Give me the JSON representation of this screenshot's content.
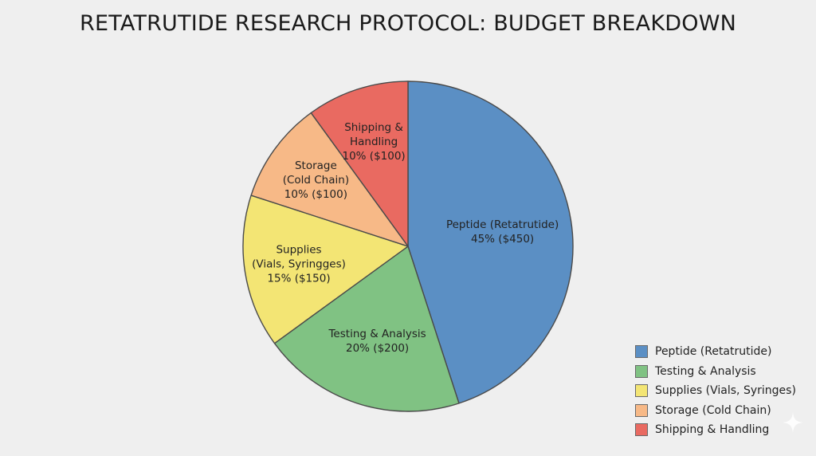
{
  "chart_data": {
    "type": "pie",
    "title": "RETATRUTIDE RESEARCH PROTOCOL: BUDGET BREAKDOWN",
    "unit": "USD",
    "slices": [
      {
        "name": "Peptide (Retatrutide)",
        "label_lines": [
          "Peptide (Retatrutide)",
          "45% ($450)"
        ],
        "percent": 45,
        "value": 450,
        "color": "#5b8fc4"
      },
      {
        "name": "Testing & Analysis",
        "label_lines": [
          "Testing & Analysis",
          "20% ($200)"
        ],
        "percent": 20,
        "value": 200,
        "color": "#80c283"
      },
      {
        "name": "Supplies (Vials, Syringes)",
        "label_lines": [
          "Supplies",
          "(Vials, Syringges)",
          "15% ($150)"
        ],
        "percent": 15,
        "value": 150,
        "color": "#f3e574"
      },
      {
        "name": "Storage (Cold Chain)",
        "label_lines": [
          "Storage",
          "(Cold Chain)",
          "10% ($100)"
        ],
        "percent": 10,
        "value": 100,
        "color": "#f7b987"
      },
      {
        "name": "Shipping & Handling",
        "label_lines": [
          "Shipping &",
          "Handling",
          "10% ($100)"
        ],
        "percent": 10,
        "value": 100,
        "color": "#e96a61"
      }
    ],
    "start_angle": "top",
    "direction": "clockwise",
    "legend_position": "bottom-right",
    "legend": [
      "Peptide (Retatrutide)",
      "Testing & Analysis",
      "Supplies (Vials, Syringes)",
      "Storage (Cold Chain)",
      "Shipping & Handling"
    ]
  }
}
